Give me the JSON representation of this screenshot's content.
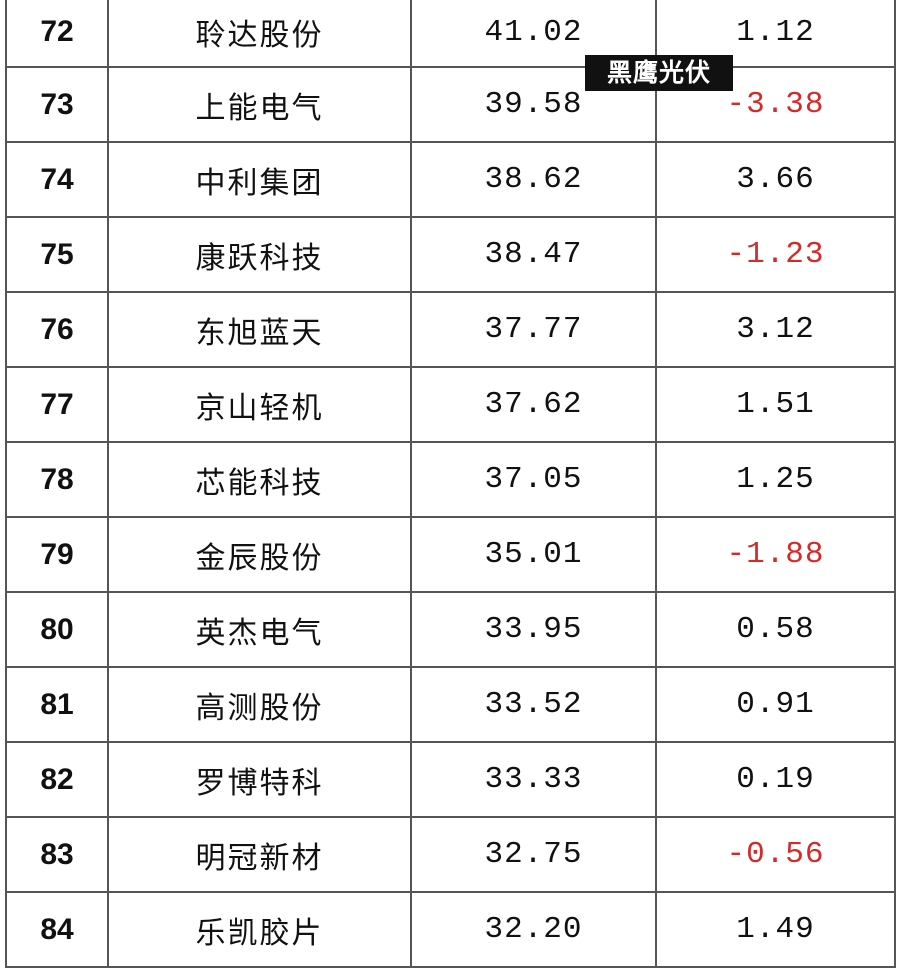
{
  "watermark": "黑鹰光伏",
  "colors": {
    "negative": "#d42a2a",
    "text": "#111111",
    "border": "#555555"
  },
  "rows": [
    {
      "rank": "72",
      "name": "聆达股份",
      "value": "41.02",
      "change": "1.12",
      "negative": false
    },
    {
      "rank": "73",
      "name": "上能电气",
      "value": "39.58",
      "change": "-3.38",
      "negative": true
    },
    {
      "rank": "74",
      "name": "中利集团",
      "value": "38.62",
      "change": "3.66",
      "negative": false
    },
    {
      "rank": "75",
      "name": "康跃科技",
      "value": "38.47",
      "change": "-1.23",
      "negative": true
    },
    {
      "rank": "76",
      "name": "东旭蓝天",
      "value": "37.77",
      "change": "3.12",
      "negative": false
    },
    {
      "rank": "77",
      "name": "京山轻机",
      "value": "37.62",
      "change": "1.51",
      "negative": false
    },
    {
      "rank": "78",
      "name": "芯能科技",
      "value": "37.05",
      "change": "1.25",
      "negative": false
    },
    {
      "rank": "79",
      "name": "金辰股份",
      "value": "35.01",
      "change": "-1.88",
      "negative": true
    },
    {
      "rank": "80",
      "name": "英杰电气",
      "value": "33.95",
      "change": "0.58",
      "negative": false
    },
    {
      "rank": "81",
      "name": "高测股份",
      "value": "33.52",
      "change": "0.91",
      "negative": false
    },
    {
      "rank": "82",
      "name": "罗博特科",
      "value": "33.33",
      "change": "0.19",
      "negative": false
    },
    {
      "rank": "83",
      "name": "明冠新材",
      "value": "32.75",
      "change": "-0.56",
      "negative": true
    },
    {
      "rank": "84",
      "name": "乐凯胶片",
      "value": "32.20",
      "change": "1.49",
      "negative": false
    }
  ]
}
